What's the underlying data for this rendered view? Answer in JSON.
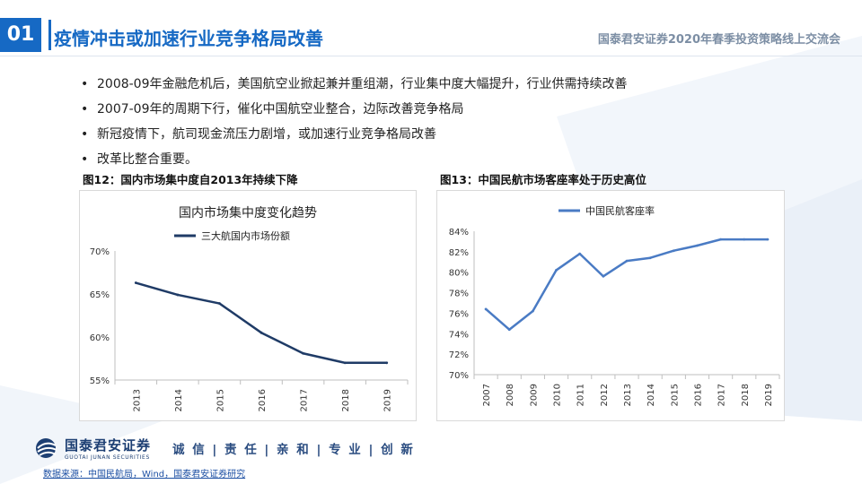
{
  "header": {
    "slide_number": "01",
    "title": "疫情冲击或加速行业竞争格局改善",
    "event": "国泰君安证券2020年春季投资策略线上交流会"
  },
  "bullets": [
    "2008-09年金融危机后，美国航空业掀起兼并重组潮，行业集中度大幅提升，行业供需持续改善",
    "2007-09年的周期下行，催化中国航空业整合，边际改善竞争格局",
    "新冠疫情下，航司现金流压力剧增，或加速行业竞争格局改善",
    "改革比整合重要。"
  ],
  "bullet_symbol": "•",
  "figures": {
    "fig12_caption": "图12：国内市场集中度自2013年持续下降",
    "fig13_caption": "图13：中国民航市场客座率处于历史高位"
  },
  "chart_data": [
    {
      "type": "line",
      "title": "国内市场集中度变化趋势",
      "x": [
        "2013",
        "2014",
        "2015",
        "2016",
        "2017",
        "2018",
        "2019"
      ],
      "series": [
        {
          "name": "三大航国内市场份额",
          "values": [
            66.3,
            64.9,
            63.9,
            60.5,
            58.1,
            57.0,
            57.0
          ]
        }
      ],
      "yticks": [
        "70%",
        "65%",
        "60%",
        "55%"
      ],
      "ylim": [
        55,
        70
      ],
      "legend": "top",
      "grid": false,
      "color": "#1f3b66"
    },
    {
      "type": "line",
      "title": "",
      "x": [
        "2007",
        "2008",
        "2009",
        "2010",
        "2011",
        "2012",
        "2013",
        "2014",
        "2015",
        "2016",
        "2017",
        "2018",
        "2019"
      ],
      "series": [
        {
          "name": "中国民航客座率",
          "values": [
            76.4,
            74.4,
            76.2,
            80.2,
            81.8,
            79.6,
            81.1,
            81.4,
            82.1,
            82.6,
            83.2,
            83.2,
            83.2
          ]
        }
      ],
      "yticks": [
        "84%",
        "82%",
        "80%",
        "78%",
        "76%",
        "74%",
        "72%",
        "70%"
      ],
      "ylim": [
        70,
        84
      ],
      "legend": "top",
      "grid": false,
      "color": "#4a7bc4"
    }
  ],
  "footer": {
    "company_cn": "国泰君安证券",
    "company_en": "GUOTAI JUNAN SECURITIES",
    "slogan": "诚 信 | 责 任 | 亲 和 | 专 业 | 创 新",
    "source": "数据来源：中国民航局，Wind，国泰君安证券研究"
  },
  "colors": {
    "accent": "#1669c4",
    "dark": "#1f3b66",
    "series2": "#4a7bc4"
  }
}
